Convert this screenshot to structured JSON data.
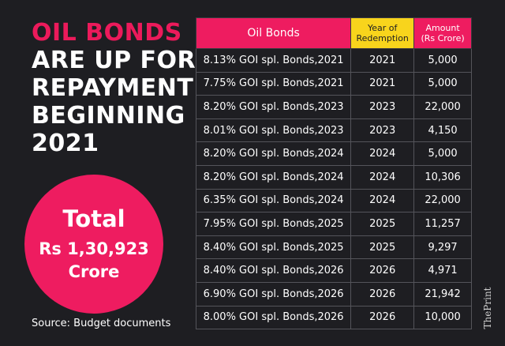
{
  "headline": {
    "accent": "OIL BONDS",
    "lines": [
      "ARE UP FOR",
      "REPAYMENT",
      "BEGINNING",
      "2021"
    ]
  },
  "total": {
    "label": "Total",
    "amount": "Rs 1,30,923",
    "unit": "Crore"
  },
  "source": "Source: Budget documents",
  "brand": "ThePrint",
  "table": {
    "headers": {
      "bond": "Oil Bonds",
      "year": [
        "Year of",
        "Redemption"
      ],
      "amount": [
        "Amount",
        "(Rs Crore)"
      ]
    },
    "rows": [
      {
        "bond": "8.13% GOI spl. Bonds,2021",
        "year": "2021",
        "amount": "5,000"
      },
      {
        "bond": "7.75% GOI spl. Bonds,2021",
        "year": "2021",
        "amount": "5,000"
      },
      {
        "bond": "8.20% GOI spl. Bonds,2023",
        "year": "2023",
        "amount": "22,000"
      },
      {
        "bond": "8.01% GOI spl. Bonds,2023",
        "year": "2023",
        "amount": "4,150"
      },
      {
        "bond": "8.20% GOI spl. Bonds,2024",
        "year": "2024",
        "amount": "5,000"
      },
      {
        "bond": "8.20% GOI spl. Bonds,2024",
        "year": "2024",
        "amount": "10,306"
      },
      {
        "bond": "6.35% GOI spl. Bonds,2024",
        "year": "2024",
        "amount": "22,000"
      },
      {
        "bond": "7.95% GOI spl. Bonds,2025",
        "year": "2025",
        "amount": "11,257"
      },
      {
        "bond": "8.40% GOI spl. Bonds,2025",
        "year": "2025",
        "amount": "9,297"
      },
      {
        "bond": "8.40% GOI spl. Bonds,2026",
        "year": "2026",
        "amount": "4,971"
      },
      {
        "bond": "6.90% GOI spl. Bonds,2026",
        "year": "2026",
        "amount": "21,942"
      },
      {
        "bond": "8.00% GOI spl. Bonds,2026",
        "year": "2026",
        "amount": "10,000"
      }
    ]
  },
  "colors": {
    "background": "#1e1e22",
    "accent": "#ee1c60",
    "year_header": "#f8d41c"
  }
}
